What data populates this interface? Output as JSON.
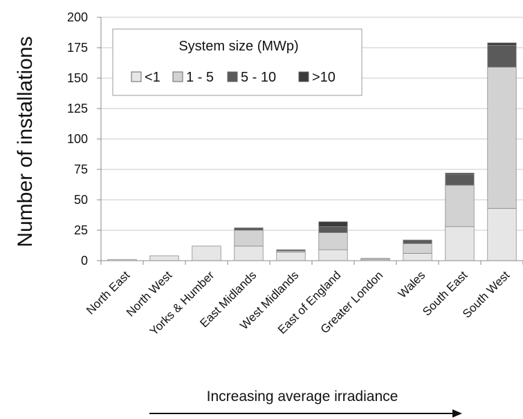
{
  "chart_data": {
    "type": "bar",
    "stacked": true,
    "ylabel": "Number of installations",
    "ylim": [
      0,
      200
    ],
    "yticks": [
      0,
      25,
      50,
      75,
      100,
      125,
      150,
      175,
      200
    ],
    "categories": [
      "North East",
      "North West",
      "Yorks & Humber",
      "East Midlands",
      "West Midlands",
      "East of England",
      "Greater London",
      "Wales",
      "South East",
      "South West"
    ],
    "series": [
      {
        "name": "<1",
        "color": "#e6e6e6",
        "values": [
          1,
          4,
          12,
          12,
          7,
          9,
          1,
          6,
          28,
          43
        ]
      },
      {
        "name": "1 - 5",
        "color": "#d2d2d2",
        "values": [
          0,
          0,
          0,
          13,
          1,
          14,
          1,
          8,
          34,
          116
        ]
      },
      {
        "name": "5 - 10",
        "color": "#5a5a5a",
        "values": [
          0,
          0,
          0,
          2,
          1,
          5,
          0,
          3,
          9,
          18
        ]
      },
      {
        "name": ">10",
        "color": "#3a3a3a",
        "values": [
          0,
          0,
          0,
          0,
          0,
          4,
          0,
          0,
          1,
          2
        ]
      }
    ],
    "legend": {
      "title": "System size (MWp)",
      "position": "top-left"
    },
    "grid": "horizontal",
    "annotation": "Increasing average irradiance"
  }
}
